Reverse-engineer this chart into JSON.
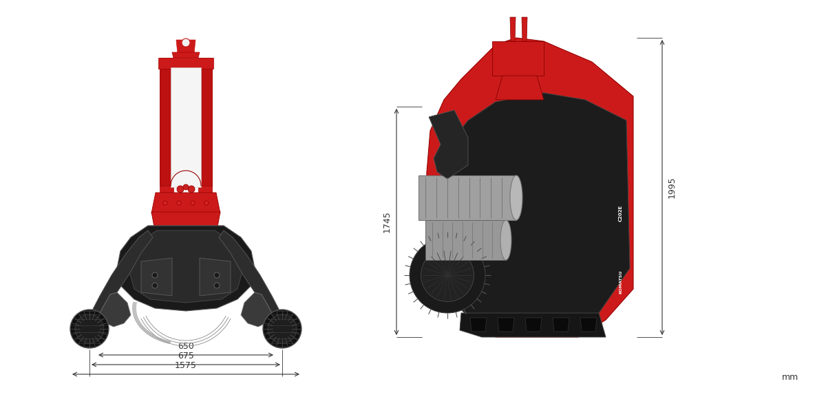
{
  "background_color": "#ffffff",
  "figure_width": 12.0,
  "figure_height": 5.8,
  "dpi": 100,
  "dim_color": "#333333",
  "red_color": "#cc1a1a",
  "dark_color": "#1a1a1a",
  "mid_dark": "#2d2d2d",
  "gray_color": "#888888",
  "light_gray": "#c0c0c0",
  "mid_gray": "#606060",
  "mm_label": "mm",
  "dim_650_label": "650",
  "dim_675_label": "675",
  "dim_1575_label": "1575",
  "dim_1745_label": "1745",
  "dim_1995_label": "1995"
}
